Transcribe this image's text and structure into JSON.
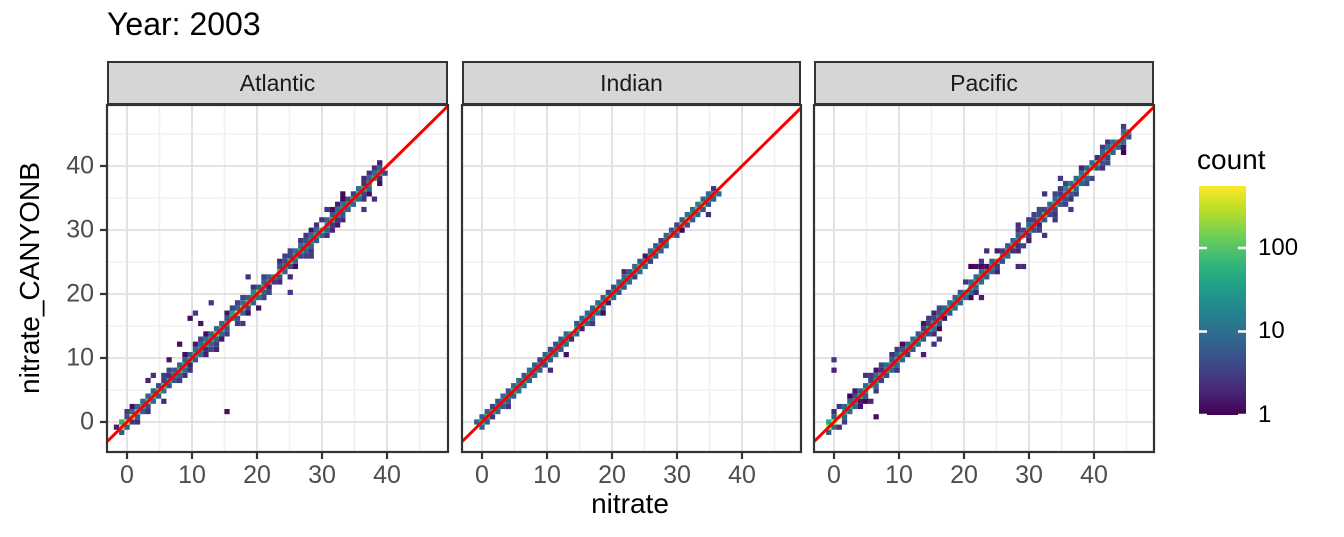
{
  "chart_data": {
    "type": "heatmap",
    "subtype": "bin2d-density-scatter-faceted",
    "title": "Year: 2003",
    "xlabel": "nitrate",
    "ylabel": "nitrate_CANYONB",
    "x_ticks": [
      0,
      10,
      20,
      30,
      40
    ],
    "y_ticks": [
      0,
      10,
      20,
      30,
      40
    ],
    "x_minor_ticks": [
      5,
      15,
      25,
      35,
      45
    ],
    "y_minor_ticks": [
      5,
      15,
      25,
      35,
      45
    ],
    "x_range": [
      -3.1,
      49.5
    ],
    "y_range": [
      -4.7,
      49.5
    ],
    "grid": true,
    "bin_size_units": 0.81,
    "identity_line": {
      "slope": 1,
      "intercept": 0,
      "color": "#f80000"
    },
    "style": {
      "strip_bg": "#d6d6d6",
      "panel_border": "#333333",
      "grid_major": "#e3e3e3",
      "grid_minor": "#f1f1f1",
      "tick_color": "#333333",
      "tick_label_color": "#4d4d4d"
    },
    "legend": {
      "title": "count",
      "position": "right",
      "scale": "log10",
      "ticks": [
        1,
        10,
        100
      ],
      "tick_labels": [
        "1",
        "10",
        "100"
      ],
      "max_count": 550,
      "viridis": [
        "#440154",
        "#482878",
        "#3e4989",
        "#31688e",
        "#26828e",
        "#1f9e89",
        "#35b779",
        "#6ece58",
        "#b5de2b",
        "#fde725"
      ]
    },
    "facets": [
      {
        "label": "Atlantic",
        "seed": 11,
        "diagonal_range": [
          -0.6,
          38.8
        ],
        "band_width_units": 1.6,
        "fringe_prob": 0.3,
        "peak_count": 420,
        "hotspots": [
          [
            0,
            0,
            420
          ],
          [
            17.3,
            17.3,
            300
          ],
          [
            20.2,
            20.2,
            160
          ],
          [
            29.8,
            29.8,
            70
          ]
        ],
        "outliers": [
          [
            15.1,
            1.8
          ],
          [
            9.6,
            16.6
          ],
          [
            10.4,
            17.2
          ],
          [
            8.3,
            11.9
          ],
          [
            23.8,
            21.8
          ],
          [
            25.2,
            20.5
          ],
          [
            11.2,
            15.0
          ],
          [
            6.1,
            9.8
          ],
          [
            13.0,
            18.6
          ],
          [
            37.9,
            34.6
          ],
          [
            4.0,
            7.4
          ],
          [
            18.6,
            22.3
          ]
        ]
      },
      {
        "label": "Indian",
        "seed": 22,
        "diagonal_range": [
          -0.2,
          35.8
        ],
        "band_width_units": 0.9,
        "fringe_prob": 0.1,
        "peak_count": 60,
        "hotspots": [
          [
            0.2,
            0.2,
            60
          ],
          [
            32.9,
            32.9,
            90
          ],
          [
            33.7,
            33.7,
            110
          ],
          [
            21.0,
            21.0,
            25
          ]
        ],
        "outliers": [
          [
            10.8,
            7.8
          ],
          [
            21.9,
            23.6
          ],
          [
            17.0,
            15.2
          ]
        ]
      },
      {
        "label": "Pacific",
        "seed": 33,
        "diagonal_range": [
          -0.6,
          45.6
        ],
        "band_width_units": 1.3,
        "fringe_prob": 0.22,
        "peak_count": 380,
        "hotspots": [
          [
            0,
            0,
            380
          ],
          [
            36.2,
            36.2,
            130
          ],
          [
            21.5,
            21.5,
            60
          ],
          [
            2.8,
            2.8,
            70
          ]
        ],
        "outliers": [
          [
            0.0,
            9.4
          ],
          [
            0.3,
            8.2
          ],
          [
            6.3,
            0.6
          ],
          [
            4.1,
            2.2
          ],
          [
            4.9,
            3.2
          ],
          [
            28.4,
            24.0
          ],
          [
            29.2,
            24.0
          ],
          [
            34.3,
            31.2
          ],
          [
            23.0,
            19.8
          ],
          [
            21.7,
            24.6
          ],
          [
            22.4,
            25.2
          ],
          [
            20.9,
            23.9
          ],
          [
            5.2,
            7.3
          ],
          [
            2.1,
            4.1
          ],
          [
            44.3,
            41.9
          ]
        ]
      }
    ]
  }
}
